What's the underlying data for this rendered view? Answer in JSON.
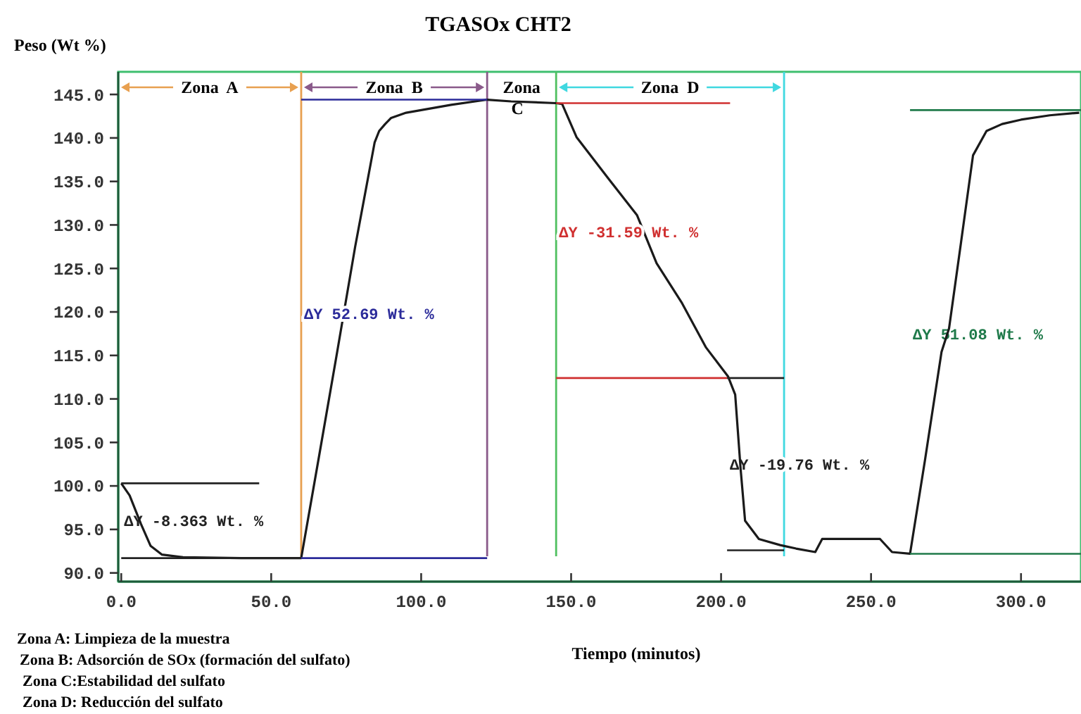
{
  "chart_data": {
    "type": "line",
    "title": "TGASOx CHT2",
    "xlabel": "Tiempo (minutos)",
    "ylabel": "Peso (Wt %)",
    "xlim": [
      -1,
      320
    ],
    "ylim": [
      89,
      147.6
    ],
    "xticks": [
      {
        "value": 0,
        "label": "0.0"
      },
      {
        "value": 50,
        "label": "50.0"
      },
      {
        "value": 100,
        "label": "100.0"
      },
      {
        "value": 150,
        "label": "150.0"
      },
      {
        "value": 200,
        "label": "200.0"
      },
      {
        "value": 250,
        "label": "250.0"
      },
      {
        "value": 300,
        "label": "300.0"
      }
    ],
    "yticks": [
      {
        "value": 90,
        "label": "90.0"
      },
      {
        "value": 95,
        "label": "95.0"
      },
      {
        "value": 100,
        "label": "100.0"
      },
      {
        "value": 105,
        "label": "105.0"
      },
      {
        "value": 110,
        "label": "110.0"
      },
      {
        "value": 115,
        "label": "115.0"
      },
      {
        "value": 120,
        "label": "120.0"
      },
      {
        "value": 125,
        "label": "125.0"
      },
      {
        "value": 130,
        "label": "130.0"
      },
      {
        "value": 135,
        "label": "135.0"
      },
      {
        "value": 140,
        "label": "140.0"
      },
      {
        "value": 145,
        "label": "145.0"
      }
    ],
    "series": [
      {
        "color": "#1a1a1a",
        "x": [
          0,
          2.8,
          6.6,
          9.8,
          13.6,
          20.6,
          40,
          60,
          66,
          72,
          78,
          84.5,
          86,
          88,
          90,
          95,
          100,
          110,
          122,
          130,
          145,
          147,
          151.8,
          162.5,
          172,
          178.5,
          187,
          195,
          202.3,
          204.7,
          206.5,
          208,
          212.6,
          219.7,
          225,
          231.4,
          233.7,
          245,
          253,
          257,
          263,
          268,
          273.5,
          276,
          280,
          284,
          288.5,
          293.7,
          300,
          309.6,
          319.4
        ],
        "values": [
          100.3,
          98.9,
          95.6,
          93.1,
          92.1,
          91.8,
          91.7,
          91.7,
          103.5,
          115.4,
          127.5,
          139.5,
          140.8,
          141.6,
          142.3,
          142.9,
          143.2,
          143.8,
          144.4,
          144.2,
          144,
          143.9,
          140.1,
          135.3,
          131.1,
          125.6,
          121,
          115.9,
          112.6,
          110.5,
          102,
          96,
          93.9,
          93.2,
          92.8,
          92.4,
          93.9,
          93.9,
          93.9,
          92.4,
          92.2,
          103,
          115.4,
          118.1,
          128,
          138,
          140.8,
          141.6,
          142.1,
          142.6,
          142.9
        ]
      },
      {
        "color": "#222222",
        "x": [
          0,
          46
        ],
        "values": [
          100.3,
          100.3
        ]
      },
      {
        "color": "#222222",
        "x": [
          0,
          60
        ],
        "values": [
          91.7,
          91.7
        ]
      },
      {
        "color": "#2b2b9a",
        "x": [
          60,
          122
        ],
        "values": [
          144.4,
          144.4
        ]
      },
      {
        "color": "#2b2b9a",
        "x": [
          60,
          122
        ],
        "values": [
          91.7,
          91.7
        ]
      },
      {
        "color": "#d03030",
        "x": [
          145,
          203
        ],
        "values": [
          144,
          144
        ]
      },
      {
        "color": "#d03030",
        "x": [
          145,
          202
        ],
        "values": [
          112.4,
          112.4
        ]
      },
      {
        "color": "#222222",
        "x": [
          202,
          221
        ],
        "values": [
          112.4,
          112.4
        ]
      },
      {
        "color": "#222222",
        "x": [
          202,
          221
        ],
        "values": [
          92.6,
          92.6
        ]
      },
      {
        "color": "#1f7a4a",
        "x": [
          263,
          320
        ],
        "values": [
          143.2,
          143.2
        ]
      },
      {
        "color": "#1f7a4a",
        "x": [
          263,
          320
        ],
        "values": [
          92.2,
          92.2
        ]
      }
    ],
    "ref_lines": [
      {
        "axis": "x",
        "value": 60,
        "color": "#e8a050"
      },
      {
        "axis": "x",
        "value": 122,
        "color": "#8a5a8a"
      },
      {
        "axis": "x",
        "value": 145,
        "color": "#50c060"
      },
      {
        "axis": "x",
        "value": 221,
        "color": "#40d8e0"
      }
    ],
    "annotations": [
      {
        "text": "ΔY 52.69 Wt. %",
        "x": 60,
        "y": 119.8
      },
      {
        "text": "ΔY -31.59 Wt. %",
        "x": 145,
        "y": 129.2
      },
      "ΔY -8.363 Wt. %",
      "ΔY -19.76 Wt. %",
      "ΔY 51.08 Wt. %",
      "Zona  A",
      "Zona  B",
      "Zona C",
      "Zona  D",
      "Zona A: Limpieza de la muestra",
      "Zona B: Adsorción de SOx (formación del sulfato)",
      "Zona C:Estabilidad del sulfato",
      "Zona D: Reducción del sulfato"
    ],
    "grid": false,
    "line_style": "solid"
  }
}
